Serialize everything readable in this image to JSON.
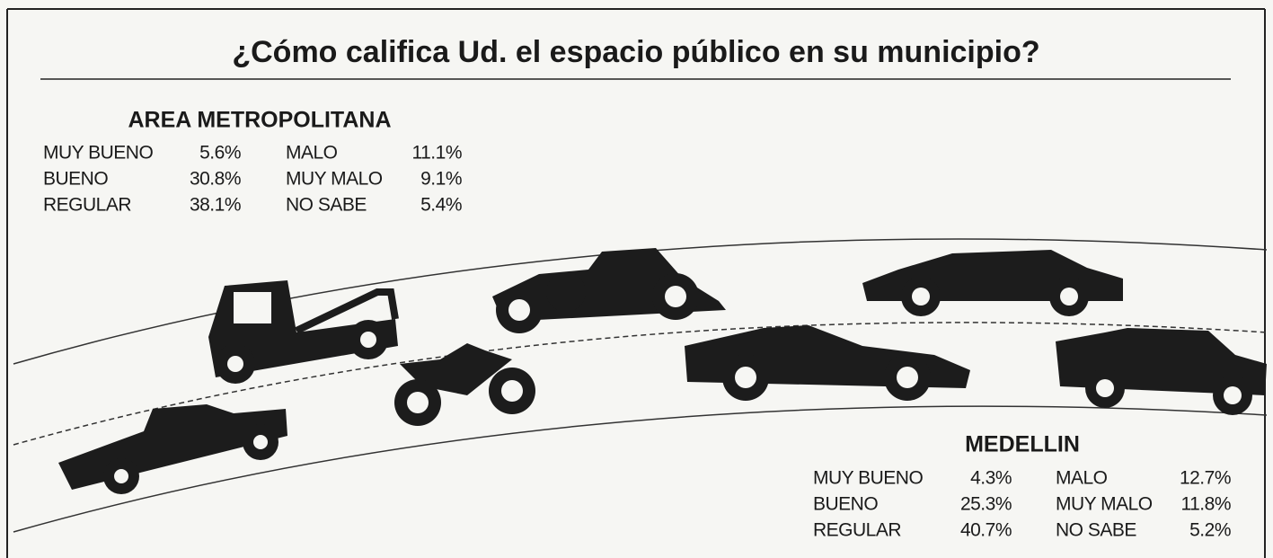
{
  "title": "¿Cómo califica Ud. el espacio público en su municipio?",
  "sections": [
    {
      "heading": "AREA METROPOLITANA",
      "rows": [
        [
          "MUY BUENO",
          "5.6%",
          "MALO",
          "11.1%"
        ],
        [
          "BUENO",
          "30.8%",
          "MUY MALO",
          "9.1%"
        ],
        [
          "REGULAR",
          "38.1%",
          "NO SABE",
          "5.4%"
        ]
      ]
    },
    {
      "heading": "MEDELLIN",
      "rows": [
        [
          "MUY BUENO",
          "4.3%",
          "MALO",
          "12.7%"
        ],
        [
          "BUENO",
          "25.3%",
          "MUY MALO",
          "11.8%"
        ],
        [
          "REGULAR",
          "40.7%",
          "NO SABE",
          "5.2%"
        ]
      ]
    }
  ]
}
